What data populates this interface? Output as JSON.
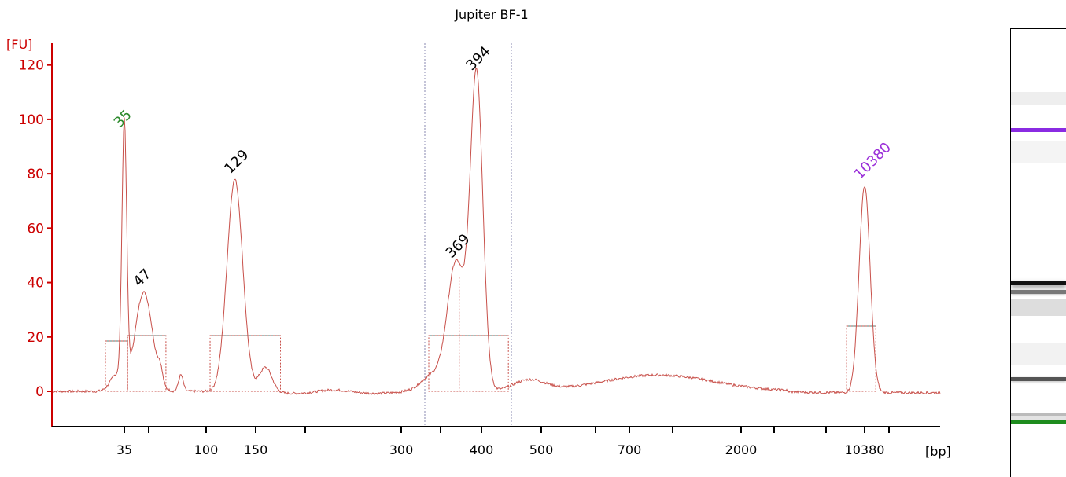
{
  "colors": {
    "axis": "#cc0000",
    "trace": "#c8504a",
    "lower_marker": "#2e8b2e",
    "upper_marker": "#9b30d9",
    "peak_label": "#000000",
    "baseline": "#4f7f7a",
    "region_line": "#8a8ab0"
  },
  "chart_data": {
    "type": "line",
    "title": "Jupiter BF-1",
    "ylabel": "[FU]",
    "xlabel": "[bp]",
    "ylim": [
      -13,
      128
    ],
    "yticks": [
      0,
      20,
      40,
      60,
      80,
      100,
      120
    ],
    "xticks": [
      {
        "label": "35",
        "x": 35
      },
      {
        "label": "",
        "x": 50
      },
      {
        "label": "100",
        "x": 100
      },
      {
        "label": "150",
        "x": 150
      },
      {
        "label": "",
        "x": 200
      },
      {
        "label": "300",
        "x": 300
      },
      {
        "label": "",
        "x": 350
      },
      {
        "label": "400",
        "x": 400
      },
      {
        "label": "500",
        "x": 500
      },
      {
        "label": "",
        "x": 600
      },
      {
        "label": "700",
        "x": 700
      },
      {
        "label": "",
        "x": 1000
      },
      {
        "label": "2000",
        "x": 2000
      },
      {
        "label": "",
        "x": 3000
      },
      {
        "label": "",
        "x": 7000
      },
      {
        "label": "10380",
        "x": 10380
      },
      {
        "label": "",
        "x": 15000
      }
    ],
    "peaks": [
      {
        "label": "35",
        "bp": 35,
        "fu": 95,
        "type": "lower_marker"
      },
      {
        "label": "47",
        "bp": 47,
        "fu": 36.5,
        "type": "peak"
      },
      {
        "label": "129",
        "bp": 129,
        "fu": 78,
        "type": "peak"
      },
      {
        "label": "369",
        "bp": 369,
        "fu": 47,
        "type": "peak"
      },
      {
        "label": "394",
        "bp": 394,
        "fu": 116,
        "type": "peak"
      },
      {
        "label": "10380",
        "bp": 10380,
        "fu": 76,
        "type": "upper_marker"
      }
    ],
    "region": {
      "from_bp": 330,
      "to_bp": 450
    }
  },
  "gel": {
    "bands": [
      {
        "name": "upper-marker-band",
        "position": 0.225,
        "color": "#8a2be2",
        "kind": "marker"
      },
      {
        "name": "peak-394-band",
        "position": 0.565,
        "color": "#111111",
        "kind": "strong"
      },
      {
        "name": "peak-369-band",
        "position": 0.585,
        "color": "#777777",
        "kind": "medium"
      },
      {
        "name": "peak-129-band",
        "position": 0.78,
        "color": "#555555",
        "kind": "medium"
      },
      {
        "name": "peak-47-band",
        "position": 0.86,
        "color": "#bbbbbb",
        "kind": "faint"
      },
      {
        "name": "lower-marker-band",
        "position": 0.875,
        "color": "#1e8c1e",
        "kind": "marker"
      }
    ]
  }
}
